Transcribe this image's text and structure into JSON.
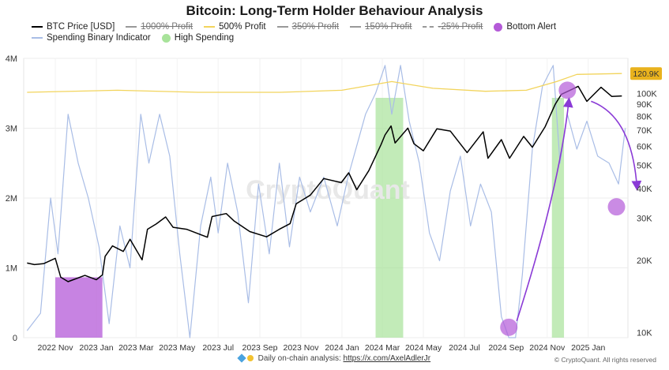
{
  "chart_data": {
    "type": "line",
    "title": "Bitcoin: Long-Term Holder Behaviour Analysis",
    "legend": [
      {
        "name": "BTC Price [USD]",
        "style": "line",
        "color": "#000000",
        "active": true
      },
      {
        "name": "1000% Profit",
        "style": "line",
        "color": "#999999",
        "active": false
      },
      {
        "name": "500% Profit",
        "style": "line",
        "color": "#f2d45c",
        "active": true
      },
      {
        "name": "350% Profit",
        "style": "line",
        "color": "#999999",
        "active": false
      },
      {
        "name": "150% Profit",
        "style": "line",
        "color": "#999999",
        "active": false
      },
      {
        "name": "-25% Profit",
        "style": "dash",
        "color": "#999999",
        "active": false
      },
      {
        "name": "Bottom Alert",
        "style": "dot",
        "color": "#b45ad8",
        "active": true
      },
      {
        "name": "Spending Binary Indicator",
        "style": "line",
        "color": "#a9bde6",
        "active": true
      },
      {
        "name": "High Spending",
        "style": "dot",
        "color": "#a8e39a",
        "active": true
      }
    ],
    "x_ticks": [
      "2022 Nov",
      "2023 Jan",
      "2023 Mar",
      "2023 May",
      "2023 Jul",
      "2023 Sep",
      "2023 Nov",
      "2024 Jan",
      "2024 Mar",
      "2024 May",
      "2024 Jul",
      "2024 Sep",
      "2024 Nov",
      "2025 Jan"
    ],
    "x_range": [
      "2022-09-15",
      "2025-03-01"
    ],
    "y_left": {
      "ticks": [
        "0",
        "1M",
        "2M",
        "3M",
        "4M"
      ],
      "values": [
        0,
        1000000,
        2000000,
        3000000,
        4000000
      ],
      "range": [
        0,
        4000000
      ]
    },
    "y_right": {
      "scale": "log",
      "ticks": [
        "10K",
        "20K",
        "30K",
        "40K",
        "50K",
        "60K",
        "70K",
        "80K",
        "90K",
        "100K"
      ],
      "values": [
        10000,
        20000,
        30000,
        40000,
        50000,
        60000,
        70000,
        80000,
        90000,
        100000
      ],
      "range": [
        9500,
        140000
      ],
      "current_price_label": "120.9K"
    },
    "series": [
      {
        "name": "BTC Price [USD]",
        "axis": "right",
        "color": "#000000",
        "points": [
          [
            "2022-09-20",
            19500
          ],
          [
            "2022-10-01",
            19200
          ],
          [
            "2022-10-15",
            19400
          ],
          [
            "2022-11-01",
            20400
          ],
          [
            "2022-11-09",
            17000
          ],
          [
            "2022-11-20",
            16300
          ],
          [
            "2022-12-15",
            17300
          ],
          [
            "2023-01-01",
            16600
          ],
          [
            "2023-01-10",
            17400
          ],
          [
            "2023-01-14",
            20800
          ],
          [
            "2023-01-25",
            23000
          ],
          [
            "2023-02-10",
            21800
          ],
          [
            "2023-02-20",
            24500
          ],
          [
            "2023-03-10",
            20100
          ],
          [
            "2023-03-18",
            27000
          ],
          [
            "2023-03-31",
            28400
          ],
          [
            "2023-04-14",
            30400
          ],
          [
            "2023-04-25",
            27500
          ],
          [
            "2023-05-15",
            27000
          ],
          [
            "2023-06-15",
            25000
          ],
          [
            "2023-06-22",
            30500
          ],
          [
            "2023-07-13",
            31400
          ],
          [
            "2023-07-25",
            29200
          ],
          [
            "2023-08-17",
            26400
          ],
          [
            "2023-09-11",
            25100
          ],
          [
            "2023-09-30",
            27000
          ],
          [
            "2023-10-16",
            28500
          ],
          [
            "2023-10-25",
            34500
          ],
          [
            "2023-11-15",
            37500
          ],
          [
            "2023-12-05",
            44000
          ],
          [
            "2023-12-31",
            42300
          ],
          [
            "2024-01-11",
            46500
          ],
          [
            "2024-01-23",
            39500
          ],
          [
            "2024-02-10",
            47500
          ],
          [
            "2024-02-28",
            61000
          ],
          [
            "2024-03-05",
            67000
          ],
          [
            "2024-03-14",
            73000
          ],
          [
            "2024-03-20",
            62000
          ],
          [
            "2024-04-08",
            71500
          ],
          [
            "2024-04-17",
            61500
          ],
          [
            "2024-05-01",
            57500
          ],
          [
            "2024-05-21",
            71000
          ],
          [
            "2024-06-10",
            69500
          ],
          [
            "2024-07-05",
            56500
          ],
          [
            "2024-07-29",
            69000
          ],
          [
            "2024-08-05",
            53500
          ],
          [
            "2024-08-25",
            64000
          ],
          [
            "2024-09-06",
            53500
          ],
          [
            "2024-09-27",
            66000
          ],
          [
            "2024-10-10",
            59500
          ],
          [
            "2024-10-29",
            72500
          ],
          [
            "2024-11-13",
            90000
          ],
          [
            "2024-11-22",
            99000
          ],
          [
            "2024-12-05",
            103000
          ],
          [
            "2024-12-17",
            107000
          ],
          [
            "2024-12-30",
            92500
          ],
          [
            "2025-01-20",
            106000
          ],
          [
            "2025-02-05",
            97000
          ],
          [
            "2025-02-20",
            97500
          ]
        ]
      },
      {
        "name": "500% Profit",
        "axis": "right",
        "color": "#f2d45c",
        "points": [
          [
            "2022-09-20",
            101000
          ],
          [
            "2023-02-01",
            103000
          ],
          [
            "2023-06-01",
            101000
          ],
          [
            "2023-10-01",
            101000
          ],
          [
            "2024-01-01",
            103000
          ],
          [
            "2024-03-15",
            112000
          ],
          [
            "2024-05-15",
            105000
          ],
          [
            "2024-08-01",
            102000
          ],
          [
            "2024-10-01",
            103000
          ],
          [
            "2024-11-15",
            112000
          ],
          [
            "2024-12-15",
            120000
          ],
          [
            "2025-02-20",
            121000
          ]
        ]
      },
      {
        "name": "Spending Binary Indicator",
        "axis": "left",
        "color": "#a9bde6",
        "points": [
          [
            "2022-09-20",
            100000
          ],
          [
            "2022-10-10",
            350000
          ],
          [
            "2022-10-25",
            2000000
          ],
          [
            "2022-11-05",
            1200000
          ],
          [
            "2022-11-20",
            3200000
          ],
          [
            "2022-12-05",
            2500000
          ],
          [
            "2022-12-20",
            2000000
          ],
          [
            "2023-01-05",
            1300000
          ],
          [
            "2023-01-20",
            200000
          ],
          [
            "2023-02-05",
            1600000
          ],
          [
            "2023-02-20",
            1000000
          ],
          [
            "2023-03-08",
            3200000
          ],
          [
            "2023-03-20",
            2500000
          ],
          [
            "2023-04-05",
            3200000
          ],
          [
            "2023-04-20",
            2600000
          ],
          [
            "2023-05-05",
            1200000
          ],
          [
            "2023-05-20",
            0
          ],
          [
            "2023-06-05",
            1600000
          ],
          [
            "2023-06-20",
            2300000
          ],
          [
            "2023-07-01",
            1500000
          ],
          [
            "2023-07-15",
            2500000
          ],
          [
            "2023-07-30",
            1800000
          ],
          [
            "2023-08-15",
            500000
          ],
          [
            "2023-08-30",
            2200000
          ],
          [
            "2023-09-15",
            1200000
          ],
          [
            "2023-09-30",
            2500000
          ],
          [
            "2023-10-15",
            1300000
          ],
          [
            "2023-10-30",
            2300000
          ],
          [
            "2023-11-15",
            1800000
          ],
          [
            "2023-12-05",
            2300000
          ],
          [
            "2023-12-25",
            1600000
          ],
          [
            "2024-01-10",
            2300000
          ],
          [
            "2024-02-05",
            3200000
          ],
          [
            "2024-02-20",
            3500000
          ],
          [
            "2024-03-05",
            3900000
          ],
          [
            "2024-03-15",
            3200000
          ],
          [
            "2024-03-28",
            3900000
          ],
          [
            "2024-04-10",
            3100000
          ],
          [
            "2024-04-25",
            2500000
          ],
          [
            "2024-05-10",
            1500000
          ],
          [
            "2024-05-25",
            1100000
          ],
          [
            "2024-06-10",
            2100000
          ],
          [
            "2024-06-25",
            2600000
          ],
          [
            "2024-07-10",
            1600000
          ],
          [
            "2024-07-25",
            2200000
          ],
          [
            "2024-08-10",
            1800000
          ],
          [
            "2024-08-25",
            300000
          ],
          [
            "2024-09-05",
            0
          ],
          [
            "2024-09-15",
            0
          ],
          [
            "2024-09-25",
            900000
          ],
          [
            "2024-10-10",
            2700000
          ],
          [
            "2024-10-25",
            3600000
          ],
          [
            "2024-11-10",
            3900000
          ],
          [
            "2024-11-20",
            2500000
          ],
          [
            "2024-12-01",
            3200000
          ],
          [
            "2024-12-15",
            2700000
          ],
          [
            "2024-12-30",
            3100000
          ],
          [
            "2025-01-15",
            2600000
          ],
          [
            "2025-02-01",
            2500000
          ],
          [
            "2025-02-15",
            2200000
          ],
          [
            "2025-02-25",
            3000000
          ]
        ]
      }
    ],
    "bottom_alert_period": [
      "2022-11-01",
      "2023-01-10"
    ],
    "high_spending_periods": [
      [
        "2024-02-20",
        "2024-04-01"
      ],
      [
        "2024-11-08",
        "2024-11-26"
      ]
    ],
    "annotation_markers": [
      {
        "date": "2024-09-05",
        "price": 10500
      },
      {
        "date": "2024-12-01",
        "price": 103000
      },
      {
        "date": "2025-02-12",
        "price": 33500
      }
    ]
  },
  "footer": {
    "prefix": "Daily on-chain analysis:",
    "link": "https://x.com/AxelAdlerJr",
    "copyright": "© CryptoQuant. All rights reserved"
  },
  "watermark": "CryptoQuant",
  "colors": {
    "price": "#000000",
    "profit500": "#f2d45c",
    "spending": "#a9bde6",
    "bottom_alert": "#b45ad8",
    "high_spending": "#a8e39a",
    "arrow": "#8a3ad6",
    "price_badge": "#e9b21d"
  }
}
